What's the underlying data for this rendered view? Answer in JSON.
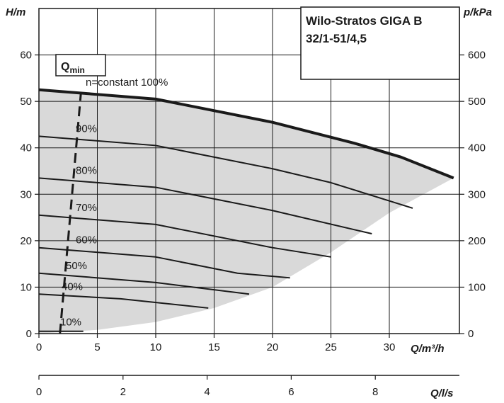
{
  "chart_data": {
    "type": "line",
    "title_line1": "Wilo-Stratos GIGA B",
    "title_line2": "32/1-51/4,5",
    "xlabel": "Q/m³/h",
    "ylabel_left": "H/m",
    "ylabel_right": "p/kPa",
    "xlabel_secondary": "Q/l/s",
    "xlim": [
      0,
      36
    ],
    "ylim": [
      0,
      70
    ],
    "x_ticks": [
      0,
      5,
      10,
      15,
      20,
      25,
      30
    ],
    "y_ticks": [
      0,
      10,
      20,
      30,
      40,
      50,
      60
    ],
    "right_ticks": [
      0,
      100,
      200,
      300,
      400,
      500,
      600
    ],
    "secondary_ticks": [
      0,
      2,
      4,
      6,
      8
    ],
    "grid": true,
    "qmin_label": "Q",
    "qmin_sub": "min",
    "qmin_line": [
      [
        1.8,
        0
      ],
      [
        3.6,
        52
      ]
    ],
    "series": [
      {
        "name": "n=constant 100%",
        "x": [
          0,
          10,
          20,
          27,
          31,
          35.5
        ],
        "y": [
          52.5,
          50.5,
          45.5,
          41,
          38,
          33.5
        ]
      },
      {
        "name": "90%",
        "x": [
          0,
          10,
          20,
          25,
          32
        ],
        "y": [
          42.5,
          40.5,
          35.5,
          32.5,
          27
        ]
      },
      {
        "name": "80%",
        "x": [
          0,
          10,
          20,
          28.5
        ],
        "y": [
          33.5,
          31.5,
          26.5,
          21.5
        ]
      },
      {
        "name": "70%",
        "x": [
          0,
          10,
          20,
          25
        ],
        "y": [
          25.5,
          23.5,
          18.5,
          16.5
        ]
      },
      {
        "name": "60%",
        "x": [
          0,
          10,
          17,
          21.5
        ],
        "y": [
          18.5,
          16.5,
          13,
          12
        ]
      },
      {
        "name": "50%",
        "x": [
          0,
          10,
          18
        ],
        "y": [
          13,
          11,
          8.5
        ]
      },
      {
        "name": "40%",
        "x": [
          0,
          7,
          14.5
        ],
        "y": [
          8.5,
          7.5,
          5.5
        ]
      },
      {
        "name": "10%",
        "x": [
          0,
          3.8
        ],
        "y": [
          0.5,
          0.5
        ]
      }
    ],
    "envelope": [
      [
        0,
        0
      ],
      [
        5,
        0.8
      ],
      [
        10,
        2.5
      ],
      [
        15,
        5.5
      ],
      [
        20,
        10
      ],
      [
        25,
        17.5
      ],
      [
        30,
        26
      ],
      [
        35.5,
        33.5
      ]
    ]
  }
}
